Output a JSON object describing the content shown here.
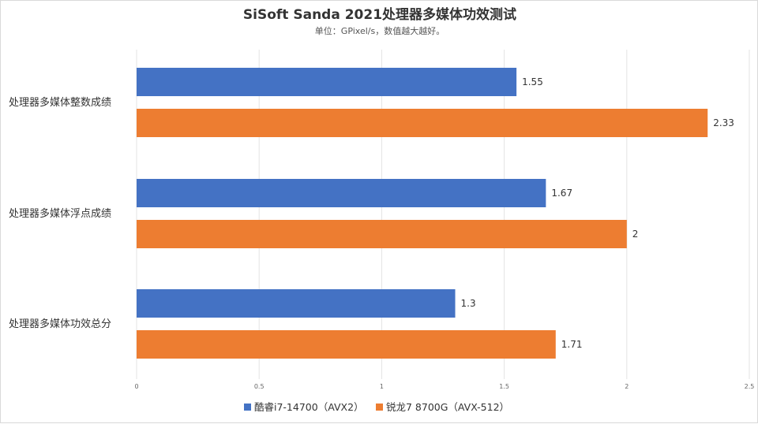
{
  "chart_data": {
    "type": "bar",
    "orientation": "horizontal",
    "title": "SiSoft Sanda 2021处理器多媒体功效测试",
    "subtitle": "单位：GPixel/s，数值越大越好。",
    "categories": [
      "处理器多媒体整数成绩",
      "处理器多媒体浮点成绩",
      "处理器多媒体功效总分"
    ],
    "series": [
      {
        "name": "酷睿i7-14700（AVX2）",
        "color": "#4472C4",
        "values": [
          1.55,
          1.67,
          1.3
        ],
        "labels": [
          "1.55",
          "1.67",
          "1.3"
        ]
      },
      {
        "name": "锐龙7 8700G（AVX-512）",
        "color": "#ED7D31",
        "values": [
          2.33,
          2,
          1.71
        ],
        "labels": [
          "2.33",
          "2",
          "1.71"
        ]
      }
    ],
    "xlim": [
      0,
      2.5
    ],
    "xticks": [
      0,
      0.5,
      1,
      1.5,
      2,
      2.5
    ],
    "xtick_labels": [
      "0",
      "0.5",
      "1",
      "1.5",
      "2",
      "2.5"
    ],
    "grid": true,
    "legend_position": "bottom"
  }
}
